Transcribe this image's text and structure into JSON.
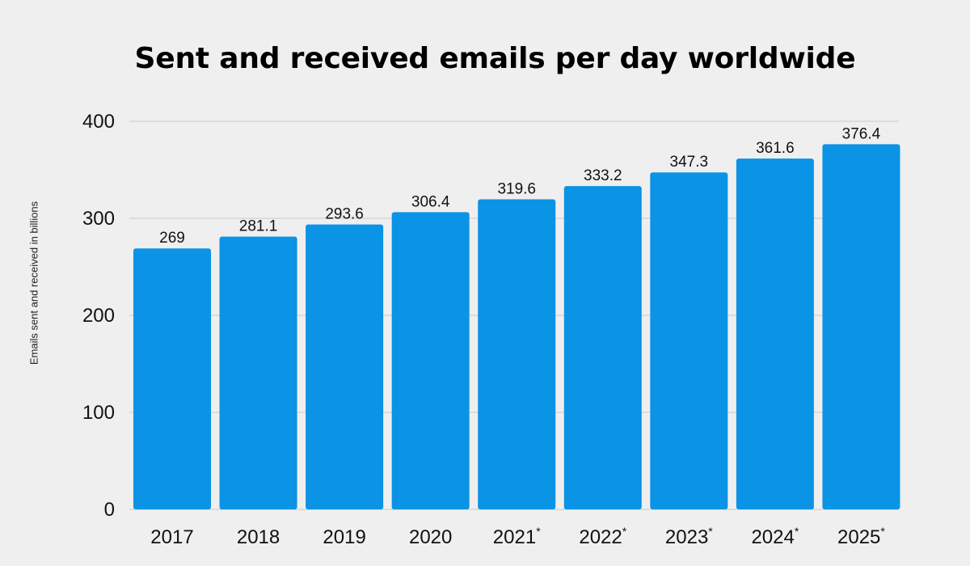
{
  "chart_data": {
    "type": "bar",
    "title": "Sent and received emails per day worldwide",
    "xlabel": "",
    "ylabel": "Emails sent and received in billions",
    "categories": [
      "2017",
      "2018",
      "2019",
      "2020",
      "2021*",
      "2022*",
      "2023*",
      "2024*",
      "2025*"
    ],
    "values": [
      269,
      281.1,
      293.6,
      306.4,
      319.6,
      333.2,
      347.3,
      361.6,
      376.4
    ],
    "data_labels": [
      "269",
      "281.1",
      "293.6",
      "306.4",
      "319.6",
      "333.2",
      "347.3",
      "361.6",
      "376.4"
    ],
    "yticks": [
      0,
      100,
      200,
      300,
      400
    ],
    "ylim": [
      0,
      400
    ],
    "grid": true,
    "bar_color": "#0b93e6",
    "grid_color": "#c8c8c8",
    "background_color": "#efefef"
  }
}
